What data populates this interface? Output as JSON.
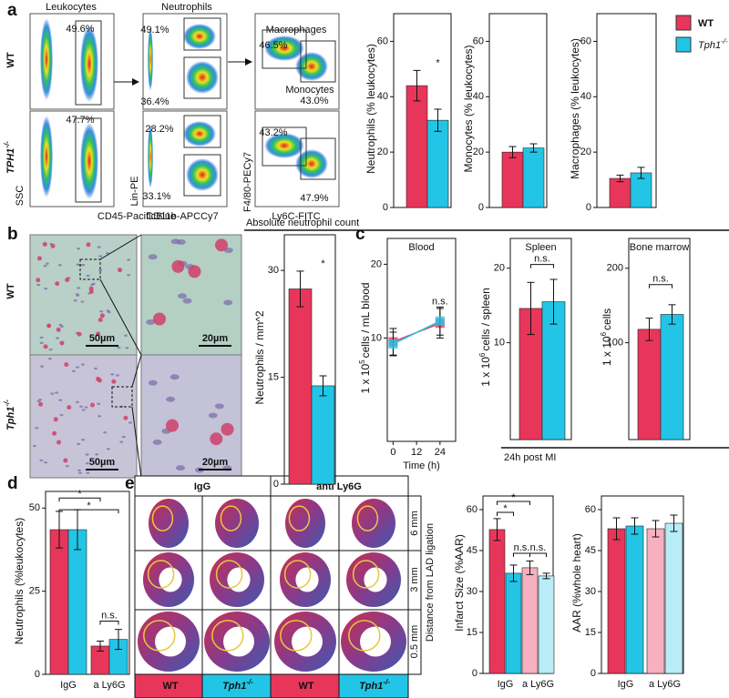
{
  "figure": {
    "panel_labels": [
      "a",
      "b",
      "c",
      "d",
      "e"
    ],
    "legend": [
      {
        "name": "WT",
        "color": "#e8365a"
      },
      {
        "name": "Tph1",
        "sup": "-/-",
        "color": "#22c5e6"
      }
    ],
    "flow": {
      "titles": [
        "Leukocytes",
        "Neutrophils"
      ],
      "row_labels": [
        {
          "text": "WT"
        },
        {
          "text": "TPH1",
          "sup": "-/-"
        }
      ],
      "axes": [
        {
          "y": "SSC",
          "x": "CD45-PacificBlue"
        },
        {
          "y": "Lin-PE",
          "x": "CD11b-APCCy7"
        },
        {
          "y": "F4/80-PECy7",
          "x": "Ly6C-FITC"
        }
      ],
      "percentages": [
        [
          "49.6%",
          "49.1%",
          "36.4%",
          "46.5%",
          "43.0%"
        ],
        [
          "47.7%",
          "28.2%",
          "33.1%",
          "43.2%",
          "47.9%"
        ]
      ],
      "gate_labels": [
        "Macrophages",
        "Monocytes"
      ]
    },
    "histology": {
      "row_labels": [
        {
          "text": "WT"
        },
        {
          "text": "Tph1",
          "sup": "-/-"
        }
      ],
      "scale_bars": [
        "50µm",
        "20µm",
        "50µm",
        "20µm"
      ]
    },
    "neutrophil_count": {
      "title": "Absolute neutrophil count",
      "footer": "24h post MI"
    },
    "infarct": {
      "column_headers": [
        "IgG",
        "anti Ly6G"
      ],
      "row_labels": [
        "6 mm",
        "3 mm",
        "0.5 mm"
      ],
      "axis_label": "Distance from LAD ligation",
      "group_labels": [
        {
          "text": "WT"
        },
        {
          "text": "Tph1",
          "sup": "-/-"
        },
        {
          "text": "WT"
        },
        {
          "text": "Tph1",
          "sup": "-/-"
        }
      ]
    }
  },
  "chart_data": [
    {
      "type": "bar",
      "ylabel": [
        "Neutrophils (% leukocytes)"
      ],
      "ylim": [
        0,
        70
      ],
      "yticks": [
        0,
        20,
        40,
        60
      ],
      "values": [
        44,
        31.5
      ],
      "errors": [
        5.5,
        4
      ],
      "colors": [
        "#e8365a",
        "#22c5e6"
      ],
      "annotations": [
        "*"
      ]
    },
    {
      "type": "bar",
      "ylabel": [
        "Monocytes (% leukocytes)"
      ],
      "ylim": [
        0,
        70
      ],
      "yticks": [
        0,
        20,
        40,
        60
      ],
      "values": [
        20,
        21.5
      ],
      "errors": [
        2,
        1.5
      ],
      "colors": [
        "#e8365a",
        "#22c5e6"
      ]
    },
    {
      "type": "bar",
      "ylabel": [
        "Macrophages (% leukocytes)"
      ],
      "ylim": [
        0,
        70
      ],
      "yticks": [
        0,
        20,
        40,
        60
      ],
      "values": [
        10.5,
        12.5
      ],
      "errors": [
        1.2,
        2
      ],
      "colors": [
        "#e8365a",
        "#22c5e6"
      ]
    },
    {
      "type": "bar",
      "ylabel": [
        "Neutrophils / mm^2"
      ],
      "ylim": [
        0,
        35
      ],
      "yticks": [
        0,
        15,
        30
      ],
      "values": [
        27.4,
        13.8
      ],
      "errors": [
        2.5,
        1.4
      ],
      "colors": [
        "#e8365a",
        "#22c5e6"
      ],
      "annotations": [
        "*"
      ]
    },
    {
      "type": "line",
      "title": "Blood",
      "ylabel": [
        "1 x 10",
        "5",
        "cells / mL blood"
      ],
      "xlabel": "Time (h)",
      "x": [
        0,
        24
      ],
      "xlim": [
        -3,
        32
      ],
      "xticks": [
        0,
        12,
        24
      ],
      "ylim": [
        -4,
        23.5
      ],
      "yticks": [
        10,
        20
      ],
      "series": [
        {
          "color": "#e8365a",
          "values": [
            9.5,
            12
          ],
          "errors": [
            1.8,
            2
          ]
        },
        {
          "color": "#22c5e6",
          "values": [
            9.2,
            12.3
          ],
          "errors": [
            1.6,
            1.9
          ]
        }
      ],
      "annotations": [
        "n.s."
      ]
    },
    {
      "type": "bar",
      "title": "Spleen",
      "ylabel": [
        "1 x 10",
        "6",
        "cells / spleen"
      ],
      "ylim": [
        -3,
        24
      ],
      "yticks": [
        10,
        20
      ],
      "values": [
        14.6,
        15.5
      ],
      "errors": [
        3.5,
        3
      ],
      "colors": [
        "#e8365a",
        "#22c5e6"
      ],
      "annotations": [
        "n.s."
      ]
    },
    {
      "type": "bar",
      "title": "Bone marrow",
      "ylabel": [
        "1 x 10",
        "6",
        "cells"
      ],
      "ylim": [
        -30,
        240
      ],
      "yticks": [
        100,
        200
      ],
      "values": [
        118,
        138
      ],
      "errors": [
        15,
        13
      ],
      "colors": [
        "#e8365a",
        "#22c5e6"
      ],
      "annotations": [
        "n.s."
      ]
    },
    {
      "type": "bar",
      "ylabel": [
        "Neutrophils (%leukocytes)"
      ],
      "ylim": [
        0,
        55
      ],
      "yticks": [
        0,
        25,
        50
      ],
      "categories": [
        "IgG",
        "a Ly6G"
      ],
      "series": [
        {
          "colors": [
            "#e8365a",
            "#e8365a"
          ],
          "values": [
            43.5,
            8.5
          ],
          "errors": [
            5.5,
            1.5
          ]
        },
        {
          "colors": [
            "#22c5e6",
            "#22c5e6"
          ],
          "values": [
            43.5,
            10.5
          ],
          "errors": [
            6,
            3
          ]
        }
      ],
      "annotations": [
        "*",
        "*",
        "n.s."
      ]
    },
    {
      "type": "bar",
      "ylabel": [
        "Infarct Size (%AAR)"
      ],
      "ylim": [
        0,
        65
      ],
      "yticks": [
        0,
        15,
        30,
        45,
        60
      ],
      "categories": [
        "IgG",
        "a Ly6G"
      ],
      "series": [
        {
          "colors": [
            "#e8365a",
            "#f6b0c0"
          ],
          "values": [
            52.7,
            38.7
          ],
          "errors": [
            4,
            2.5
          ]
        },
        {
          "colors": [
            "#22c5e6",
            "#b8ecf6"
          ],
          "values": [
            36.7,
            35.7
          ],
          "errors": [
            3,
            1
          ]
        }
      ],
      "annotations": [
        "*",
        "*",
        "n.s.",
        "n.s."
      ]
    },
    {
      "type": "bar",
      "ylabel": [
        "AAR (%whole heart)"
      ],
      "ylim": [
        0,
        65
      ],
      "yticks": [
        0,
        15,
        30,
        45,
        60
      ],
      "categories": [
        "IgG",
        "a Ly6G"
      ],
      "series": [
        {
          "colors": [
            "#e8365a",
            "#f6b0c0"
          ],
          "values": [
            53,
            53
          ],
          "errors": [
            4,
            3
          ]
        },
        {
          "colors": [
            "#22c5e6",
            "#b8ecf6"
          ],
          "values": [
            54,
            55
          ],
          "errors": [
            3,
            3
          ]
        }
      ]
    }
  ]
}
